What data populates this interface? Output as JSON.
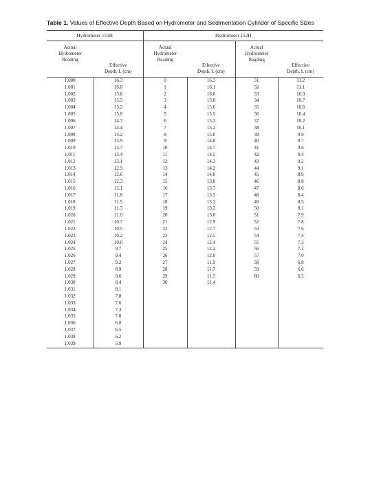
{
  "title": {
    "label": "Table 1.",
    "text": "Values of Effective Depth Based on Hydrometer and Sedimentation Cylinder of Specific Sizes"
  },
  "groups": [
    "Hydrometer 151H",
    "Hydrometer 152H"
  ],
  "columns": [
    [
      "Actual",
      "Hydrometer",
      "Reading"
    ],
    [
      "Effective",
      "Depth, L (cm)"
    ],
    [
      "Actual",
      "Hydrometer",
      "Reading"
    ],
    [
      "Effective",
      "Depth, L (cm)"
    ],
    [
      "Actual",
      "Hydrometer",
      "Reading"
    ],
    [
      "Effective",
      "Depth, L (cm)"
    ]
  ],
  "rows": [
    [
      "1.000",
      "16.3",
      "0",
      "16.3",
      "31",
      "11.2"
    ],
    [
      "1.001",
      "16.0",
      "1",
      "16.1",
      "32",
      "11.1"
    ],
    [
      "1.002",
      "15.8",
      "2",
      "16.0",
      "33",
      "10.9"
    ],
    [
      "1.003",
      "15.5",
      "3",
      "15.8",
      "34",
      "10.7"
    ],
    [
      "1.004",
      "15.2",
      "4",
      "15.6",
      "35",
      "10.6"
    ],
    [
      "1.005",
      "15.0",
      "5",
      "15.5",
      "36",
      "10.4"
    ],
    [
      "1.006",
      "14.7",
      "6",
      "15.3",
      "37",
      "10.2"
    ],
    [
      "1.007",
      "14.4",
      "7",
      "15.2",
      "38",
      "10.1"
    ],
    [
      "1.008",
      "14.2",
      "8",
      "15.0",
      "39",
      "9.9"
    ],
    [
      "1.009",
      "13.9",
      "9",
      "14.8",
      "40",
      "9.7"
    ],
    [
      "1.010",
      "13.7",
      "10",
      "14.7",
      "41",
      "9.6"
    ],
    [
      "1.011",
      "13.4",
      "11",
      "14.5",
      "42",
      "9.4"
    ],
    [
      "1.012",
      "13.1",
      "12",
      "14.3",
      "43",
      "9.2"
    ],
    [
      "1.013",
      "12.9",
      "13",
      "14.2",
      "44",
      "9.1"
    ],
    [
      "1.014",
      "12.6",
      "14",
      "14.0",
      "45",
      "8.9"
    ],
    [
      "1.015",
      "12.3",
      "15",
      "13.8",
      "46",
      "8.8"
    ],
    [
      "1.016",
      "12.1",
      "16",
      "13.7",
      "47",
      "8.6"
    ],
    [
      "1.017",
      "11.8",
      "17",
      "13.5",
      "48",
      "8.4"
    ],
    [
      "1.018",
      "11.5",
      "18",
      "13.3",
      "49",
      "8.3"
    ],
    [
      "1.019",
      "11.3",
      "19",
      "13.2",
      "50",
      "8.1"
    ],
    [
      "1.020",
      "11.0",
      "20",
      "13.0",
      "51",
      "7.9"
    ],
    [
      "1.021",
      "10.7",
      "21",
      "12.9",
      "52",
      "7.8"
    ],
    [
      "1.022",
      "10.5",
      "22",
      "12.7",
      "53",
      "7.6"
    ],
    [
      "1.023",
      "10.2",
      "23",
      "12.5",
      "54",
      "7.4"
    ],
    [
      "1.024",
      "10.0",
      "24",
      "12.4",
      "55",
      "7.3"
    ],
    [
      "1.025",
      "9.7",
      "25",
      "12.2",
      "56",
      "7.1"
    ],
    [
      "1.026",
      "9.4",
      "26",
      "12.0",
      "57",
      "7.0"
    ],
    [
      "1.027",
      "9.2",
      "27",
      "11.9",
      "58",
      "6.8"
    ],
    [
      "1.028",
      "8.9",
      "28",
      "11.7",
      "59",
      "6.6"
    ],
    [
      "1.029",
      "8.6",
      "29",
      "11.5",
      "60",
      "6.5"
    ],
    [
      "1.030",
      "8.4",
      "30",
      "11.4",
      "",
      ""
    ],
    [
      "1.031",
      "8.1",
      "",
      "",
      "",
      ""
    ],
    [
      "1.032",
      "7.8",
      "",
      "",
      "",
      ""
    ],
    [
      "1.033",
      "7.6",
      "",
      "",
      "",
      ""
    ],
    [
      "1.034",
      "7.3",
      "",
      "",
      "",
      ""
    ],
    [
      "1.035",
      "7.0",
      "",
      "",
      "",
      ""
    ],
    [
      "1.036",
      "6.8",
      "",
      "",
      "",
      ""
    ],
    [
      "1.037",
      "6.5",
      "",
      "",
      "",
      ""
    ],
    [
      "1.038",
      "6.2",
      "",
      "",
      "",
      ""
    ],
    [
      "1.039",
      "5.9",
      "",
      "",
      "",
      ""
    ]
  ]
}
